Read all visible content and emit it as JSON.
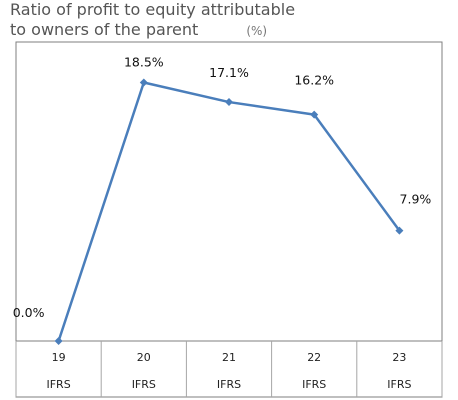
{
  "title_line1": "Ratio of profit to equity attributable",
  "title_line2": "to owners of the parent",
  "unit": "(%)",
  "colors": {
    "series": "#4A7EBB",
    "frame": "#7f7f7f",
    "grid": "#a6a6a6"
  },
  "chart_data": {
    "type": "line",
    "title": "Ratio of profit to equity attributable to owners of the parent",
    "unit": "(%)",
    "categories": [
      "19",
      "20",
      "21",
      "22",
      "23"
    ],
    "category_sublabels": [
      "IFRS",
      "IFRS",
      "IFRS",
      "IFRS",
      "IFRS"
    ],
    "values": [
      0.0,
      18.5,
      17.1,
      16.2,
      7.9
    ],
    "data_labels": [
      "0.0%",
      "18.5%",
      "17.1%",
      "16.2%",
      "7.9%"
    ],
    "ylim": [
      0,
      20
    ],
    "grid": false,
    "legend": "none"
  }
}
